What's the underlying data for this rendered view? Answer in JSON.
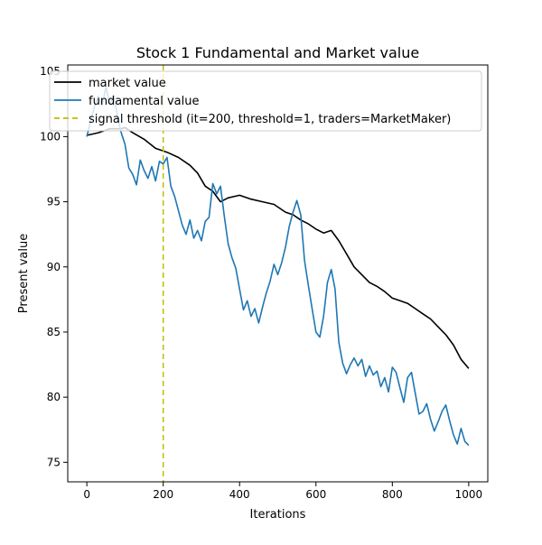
{
  "chart_data": {
    "type": "line",
    "title": "Stock 1 Fundamental and Market value",
    "xlabel": "Iterations",
    "ylabel": "Present value",
    "xlim": [
      -50,
      1050
    ],
    "ylim": [
      73.5,
      105.5
    ],
    "xticks": [
      0,
      200,
      400,
      600,
      800,
      1000
    ],
    "yticks": [
      75,
      80,
      85,
      90,
      95,
      100,
      105
    ],
    "grid": false,
    "legend_position": "top-left",
    "series": [
      {
        "name": "market value",
        "color": "#000000",
        "style": "solid",
        "x": [
          0,
          30,
          60,
          90,
          100,
          120,
          150,
          180,
          210,
          240,
          270,
          290,
          310,
          330,
          350,
          370,
          400,
          430,
          460,
          490,
          520,
          540,
          560,
          580,
          600,
          620,
          640,
          660,
          680,
          700,
          720,
          740,
          760,
          780,
          800,
          820,
          840,
          860,
          880,
          900,
          920,
          940,
          960,
          980,
          1000
        ],
        "y": [
          100.1,
          100.3,
          100.6,
          100.6,
          100.7,
          100.3,
          99.8,
          99.1,
          98.8,
          98.4,
          97.8,
          97.2,
          96.2,
          95.8,
          95.0,
          95.3,
          95.5,
          95.2,
          95.0,
          94.8,
          94.2,
          94.0,
          93.6,
          93.3,
          92.9,
          92.6,
          92.8,
          92.0,
          91.0,
          90.0,
          89.4,
          88.8,
          88.5,
          88.1,
          87.6,
          87.4,
          87.2,
          86.8,
          86.4,
          86.0,
          85.4,
          84.8,
          84.0,
          82.9,
          82.2
        ]
      },
      {
        "name": "fundamental value",
        "color": "#1f77b4",
        "style": "solid",
        "x": [
          0,
          10,
          20,
          30,
          40,
          50,
          60,
          70,
          80,
          90,
          100,
          110,
          120,
          130,
          140,
          150,
          160,
          170,
          180,
          190,
          200,
          210,
          220,
          230,
          240,
          250,
          260,
          270,
          280,
          290,
          300,
          310,
          320,
          330,
          340,
          350,
          360,
          370,
          380,
          390,
          400,
          410,
          420,
          430,
          440,
          450,
          460,
          470,
          480,
          490,
          500,
          510,
          520,
          530,
          540,
          550,
          560,
          570,
          580,
          590,
          600,
          610,
          620,
          630,
          640,
          650,
          660,
          670,
          680,
          690,
          700,
          710,
          720,
          730,
          740,
          750,
          760,
          770,
          780,
          790,
          800,
          810,
          820,
          830,
          840,
          850,
          860,
          870,
          880,
          890,
          900,
          910,
          920,
          930,
          940,
          950,
          960,
          970,
          980,
          990,
          1000
        ],
        "y": [
          100.0,
          101.2,
          102.3,
          103.1,
          102.4,
          103.8,
          102.5,
          103.2,
          101.6,
          100.3,
          99.4,
          97.6,
          97.1,
          96.3,
          98.2,
          97.4,
          96.8,
          97.7,
          96.6,
          98.1,
          97.9,
          98.4,
          96.2,
          95.4,
          94.3,
          93.2,
          92.5,
          93.6,
          92.2,
          92.8,
          92.0,
          93.5,
          93.8,
          96.4,
          95.6,
          96.2,
          93.9,
          91.8,
          90.7,
          89.9,
          88.3,
          86.7,
          87.4,
          86.2,
          86.8,
          85.7,
          86.9,
          88.0,
          88.9,
          90.2,
          89.4,
          90.3,
          91.5,
          93.1,
          94.2,
          95.1,
          94.0,
          90.5,
          88.6,
          86.8,
          85.0,
          84.6,
          86.2,
          88.8,
          89.8,
          88.3,
          84.2,
          82.6,
          81.8,
          82.5,
          83.0,
          82.4,
          82.9,
          81.6,
          82.4,
          81.7,
          82.0,
          80.8,
          81.5,
          80.4,
          82.3,
          81.9,
          80.7,
          79.6,
          81.5,
          81.9,
          80.3,
          78.7,
          78.9,
          79.5,
          78.3,
          77.4,
          78.1,
          78.9,
          79.4,
          78.2,
          77.1,
          76.4,
          77.6,
          76.6,
          76.3
        ]
      }
    ],
    "vline": {
      "label": "signal threshold (it=200, threshold=1, traders=MarketMaker)",
      "x": 200,
      "color": "#bfbf00",
      "style": "dashed"
    }
  }
}
